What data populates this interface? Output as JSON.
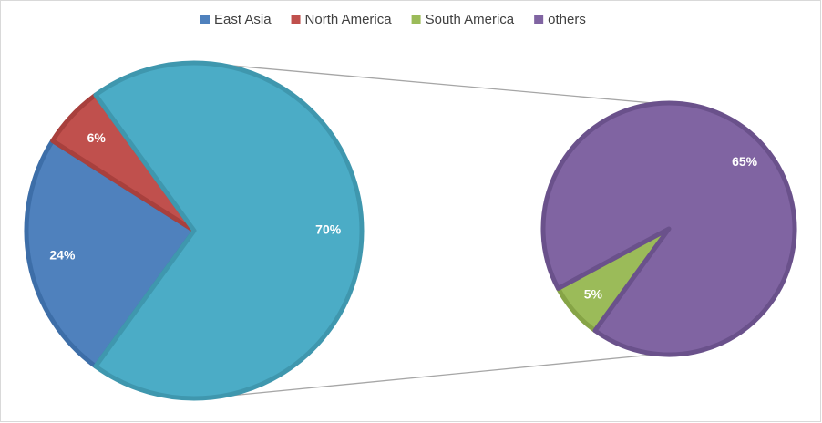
{
  "chart_data": {
    "type": "pie",
    "pies": [
      {
        "categories": [
          "East Asia",
          "North America",
          null
        ],
        "values": [
          24,
          6,
          70
        ],
        "value_labels": [
          "24%",
          "6%",
          "70%"
        ],
        "colors": [
          "#4f81bd",
          "#c0504d",
          "#4bacc6"
        ],
        "strokes": [
          "#3d6ea8",
          "#a8403d",
          "#3f97ae"
        ]
      },
      {
        "categories": [
          "South America",
          "others"
        ],
        "values": [
          5,
          65
        ],
        "value_labels": [
          "5%",
          "65%"
        ],
        "colors": [
          "#9bbb59",
          "#8064a2"
        ],
        "strokes": [
          "#86a446",
          "#6a518b"
        ]
      }
    ],
    "legend_position": "top"
  }
}
